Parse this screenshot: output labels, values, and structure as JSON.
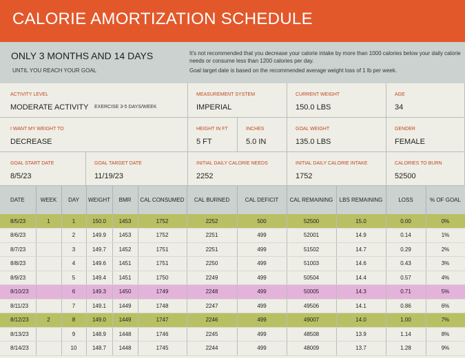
{
  "header": {
    "title": "CALORIE AMORTIZATION SCHEDULE"
  },
  "summary": {
    "headline": "ONLY 3 MONTHS AND 14 DAYS",
    "subline": "UNTIL YOU REACH YOUR GOAL",
    "note1": "It's not recommended that you decrease your calorie intake by more than 1000 calories below your daily calorie needs or consume less than 1200 calories per day.",
    "note2": "Goal target date is based on the recommended average weight loss of 1 lb per week."
  },
  "inputs": {
    "activity_level": {
      "label": "ACTIVITY LEVEL",
      "value": "MODERATE ACTIVITY",
      "detail": "EXERCISE 3-5 DAYS/WEEK"
    },
    "measurement_system": {
      "label": "MEASUREMENT SYSTEM",
      "value": "IMPERIAL"
    },
    "current_weight": {
      "label": "CURRENT WEIGHT",
      "value": "150.0 LBS"
    },
    "age": {
      "label": "AGE",
      "value": "34"
    },
    "weight_goal": {
      "label": "I WANT MY WEIGHT TO",
      "value": "DECREASE"
    },
    "height_ft": {
      "label": "HEIGHT IN FT",
      "value": "5 FT"
    },
    "inches": {
      "label": "INCHES",
      "value": "5.0 IN"
    },
    "goal_weight": {
      "label": "GOAL WEIGHT",
      "value": "135.0 LBS"
    },
    "gender": {
      "label": "GENDER",
      "value": "FEMALE"
    },
    "goal_start_date": {
      "label": "GOAL START DATE",
      "value": "8/5/23"
    },
    "goal_target_date": {
      "label": "GOAL TARGET DATE",
      "value": "11/19/23"
    },
    "initial_calorie_needs": {
      "label": "INITIAL DAILY CALORIE NEEDS",
      "value": "2252"
    },
    "initial_calorie_intake": {
      "label": "INITIAL DAILY CALORIE INTAKE",
      "value": "1752"
    },
    "calories_to_burn": {
      "label": "CALORIES TO BURN",
      "value": "52500"
    }
  },
  "table": {
    "columns": [
      "DATE",
      "WEEK",
      "DAY",
      "WEIGHT",
      "BMR",
      "CAL CONSUMED",
      "CAL BURNED",
      "CAL DEFICIT",
      "CAL REMAINING",
      "LBS REMAINING",
      "LOSS",
      "% OF GOAL"
    ],
    "rows": [
      [
        "8/5/23",
        "1",
        "1",
        "150.0",
        "1453",
        "1752",
        "2252",
        "500",
        "52500",
        "15.0",
        "0.00",
        "0%"
      ],
      [
        "8/6/23",
        "",
        "2",
        "149.9",
        "1453",
        "1752",
        "2251",
        "499",
        "52001",
        "14.9",
        "0.14",
        "1%"
      ],
      [
        "8/7/23",
        "",
        "3",
        "149.7",
        "1452",
        "1751",
        "2251",
        "499",
        "51502",
        "14.7",
        "0.29",
        "2%"
      ],
      [
        "8/8/23",
        "",
        "4",
        "149.6",
        "1451",
        "1751",
        "2250",
        "499",
        "51003",
        "14.6",
        "0.43",
        "3%"
      ],
      [
        "8/9/23",
        "",
        "5",
        "149.4",
        "1451",
        "1750",
        "2249",
        "499",
        "50504",
        "14.4",
        "0.57",
        "4%"
      ],
      [
        "8/10/23",
        "",
        "6",
        "149.3",
        "1450",
        "1749",
        "2248",
        "499",
        "50005",
        "14.3",
        "0.71",
        "5%"
      ],
      [
        "8/11/23",
        "",
        "7",
        "149.1",
        "1449",
        "1748",
        "2247",
        "499",
        "49506",
        "14.1",
        "0.86",
        "6%"
      ],
      [
        "8/12/23",
        "2",
        "8",
        "149.0",
        "1449",
        "1747",
        "2246",
        "499",
        "49007",
        "14.0",
        "1.00",
        "7%"
      ],
      [
        "8/13/23",
        "",
        "9",
        "148.9",
        "1448",
        "1746",
        "2245",
        "499",
        "48508",
        "13.9",
        "1.14",
        "8%"
      ],
      [
        "8/14/23",
        "",
        "10",
        "148.7",
        "1448",
        "1745",
        "2244",
        "499",
        "48009",
        "13.7",
        "1.28",
        "9%"
      ]
    ],
    "row_styles": [
      "week",
      "",
      "",
      "",
      "",
      "highlight",
      "",
      "week",
      "",
      ""
    ]
  },
  "colors": {
    "title_bar": "#e2582b",
    "summary_band": "#cbd2d0",
    "week_row": "#b9c063",
    "highlight_row": "#e4b3db",
    "label_text": "#c0461c"
  }
}
